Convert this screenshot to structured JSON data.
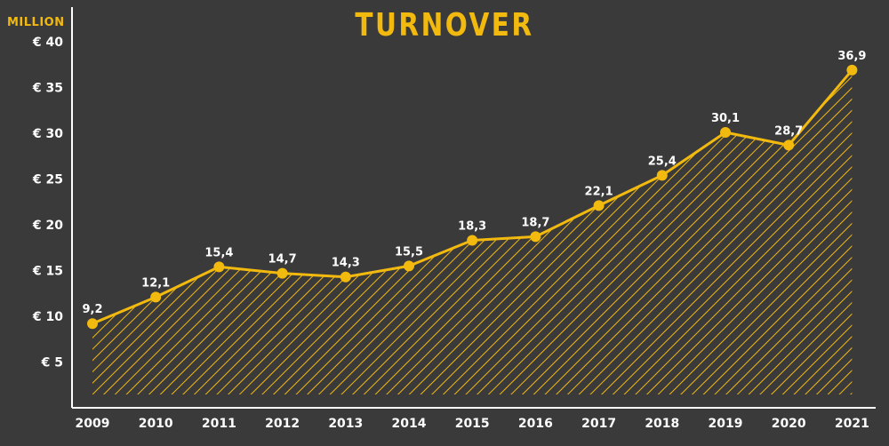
{
  "colors": {
    "background": "#3b3a3a",
    "accent": "#f2b90f",
    "text": "#ffffff"
  },
  "chart_data": {
    "type": "area",
    "title": "TURNOVER",
    "ylabel": "MILLION",
    "xlabel": "",
    "ylim": [
      0,
      40
    ],
    "y_ticks": [
      5,
      10,
      15,
      20,
      25,
      30,
      35,
      40
    ],
    "y_tick_labels": [
      "€ 5",
      "€ 10",
      "€ 15",
      "€ 20",
      "€ 25",
      "€ 30",
      "€ 35",
      "€ 40"
    ],
    "categories": [
      "2009",
      "2010",
      "2011",
      "2012",
      "2013",
      "2014",
      "2015",
      "2016",
      "2017",
      "2018",
      "2019",
      "2020",
      "2021"
    ],
    "values": [
      9.2,
      12.1,
      15.4,
      14.7,
      14.3,
      15.5,
      18.3,
      18.7,
      22.1,
      25.4,
      30.1,
      28.7,
      36.9
    ],
    "data_labels": [
      "9,2",
      "12,1",
      "15,4",
      "14,7",
      "14,3",
      "15,5",
      "18,3",
      "18,7",
      "22,1",
      "25,4",
      "30,1",
      "28,7",
      "36,9"
    ],
    "grid": false,
    "legend": "none",
    "fill": "diagonal-hatch"
  }
}
